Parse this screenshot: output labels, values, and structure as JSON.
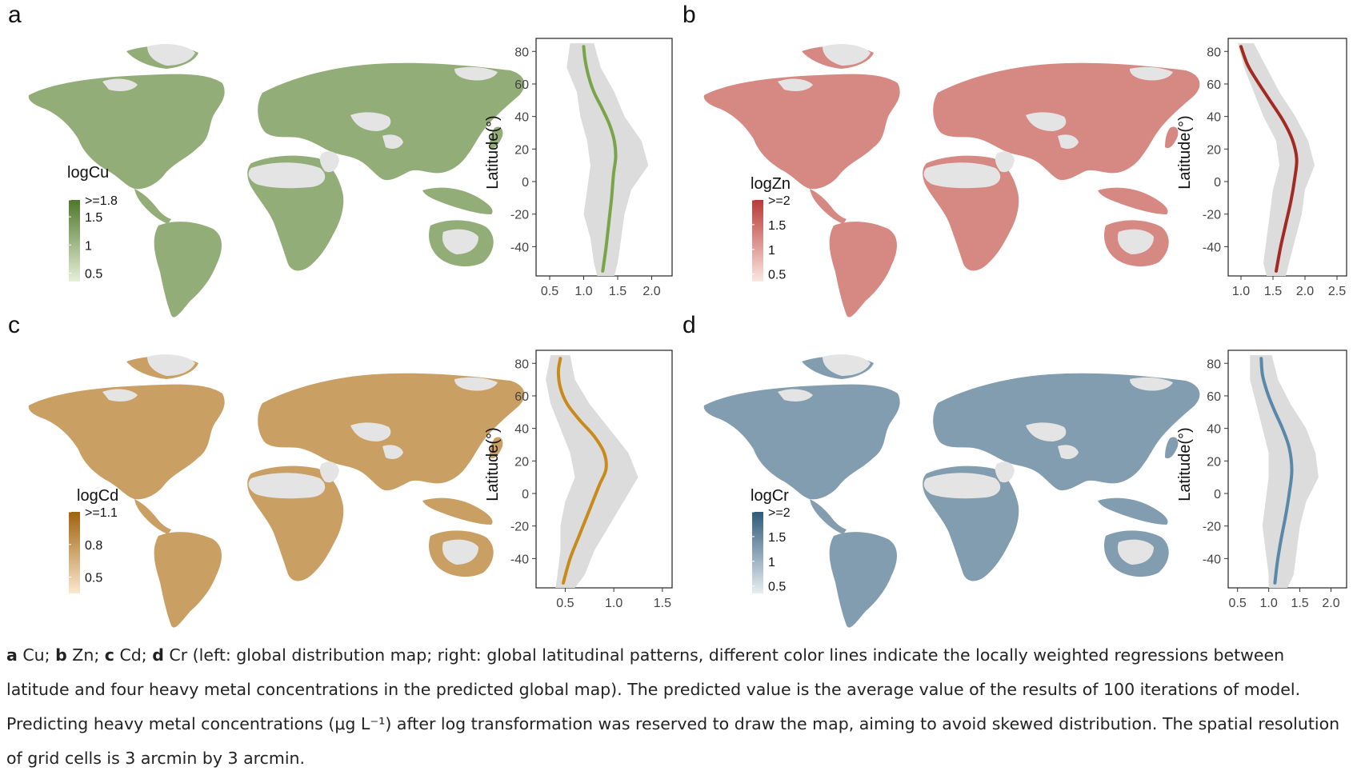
{
  "caption": {
    "a": "a",
    "a_text": " Cu; ",
    "b": "b",
    "b_text": " Zn; ",
    "c": "c",
    "c_text": " Cd; ",
    "d": "d",
    "rest": " Cr (left: global distribution map; right: global latitudinal patterns, different color lines indicate the locally weighted regressions between latitude and four heavy metal concentrations in the predicted global map). The predicted value is the average value of the results of 100 iterations of model. Predicting heavy metal concentrations (μg L⁻¹) after log transformation was reserved to draw the map, aiming to avoid skewed distribution. The spatial resolution of grid cells is 3 arcmin by 3 arcmin."
  },
  "chart_data": [
    {
      "type": "line",
      "panel": "a",
      "metal": "Cu",
      "legend_title": "logCu",
      "legend_ticks": [
        ">=1.8",
        "1.5",
        "1",
        "0.5"
      ],
      "legend_values": [
        1.8,
        1.5,
        1.0,
        0.5
      ],
      "legend_range": [
        0.35,
        1.8
      ],
      "colors": {
        "low": "#e7efd8",
        "high": "#4f772b",
        "line": "#7aa449"
      },
      "ylabel": "Latitude(°)",
      "ylim": [
        -58,
        88
      ],
      "yticks": [
        80,
        60,
        40,
        20,
        0,
        -20,
        -40
      ],
      "xlim": [
        0.3,
        2.3
      ],
      "xticks": [
        0.5,
        1.0,
        1.5,
        2.0
      ],
      "xtick_labels": [
        "0.5",
        "1.0",
        "1.5",
        "2.0"
      ],
      "x": [
        1.0,
        1.02,
        1.07,
        1.15,
        1.27,
        1.38,
        1.45,
        1.47,
        1.44,
        1.41,
        1.37,
        1.33,
        1.28
      ],
      "y": [
        83,
        75,
        65,
        55,
        45,
        35,
        25,
        15,
        5,
        -10,
        -25,
        -40,
        -55
      ],
      "band": {
        "y": [
          85,
          70,
          55,
          40,
          25,
          10,
          -5,
          -20,
          -35,
          -50,
          -58
        ],
        "lo": [
          0.8,
          0.75,
          0.9,
          0.95,
          1.05,
          1.1,
          1.05,
          1.0,
          1.1,
          1.15,
          1.2
        ],
        "hi": [
          1.15,
          1.25,
          1.45,
          1.6,
          1.85,
          1.95,
          1.7,
          1.6,
          1.55,
          1.5,
          1.45
        ]
      }
    },
    {
      "type": "line",
      "panel": "b",
      "metal": "Zn",
      "legend_title": "logZn",
      "legend_ticks": [
        ">=2",
        "1.5",
        "1",
        "0.5"
      ],
      "legend_values": [
        2.0,
        1.5,
        1.0,
        0.5
      ],
      "legend_range": [
        0.35,
        2.0
      ],
      "colors": {
        "low": "#fbe7e2",
        "high": "#b83a36",
        "line": "#a32a22"
      },
      "ylabel": "Latitude(°)",
      "ylim": [
        -58,
        88
      ],
      "yticks": [
        80,
        60,
        40,
        20,
        0,
        -20,
        -40
      ],
      "xlim": [
        0.8,
        2.65
      ],
      "xticks": [
        1.0,
        1.5,
        2.0,
        2.5
      ],
      "xtick_labels": [
        "1.0",
        "1.5",
        "2.0",
        "2.5"
      ],
      "x": [
        1.0,
        1.1,
        1.25,
        1.45,
        1.65,
        1.8,
        1.87,
        1.84,
        1.78,
        1.7,
        1.62,
        1.55
      ],
      "y": [
        83,
        72,
        62,
        50,
        38,
        26,
        14,
        2,
        -12,
        -26,
        -40,
        -55
      ],
      "band": {
        "y": [
          85,
          70,
          55,
          40,
          25,
          10,
          -5,
          -20,
          -35,
          -50,
          -58
        ],
        "lo": [
          0.95,
          1.05,
          1.2,
          1.35,
          1.55,
          1.6,
          1.5,
          1.45,
          1.4,
          1.35,
          1.4
        ],
        "hi": [
          1.2,
          1.4,
          1.6,
          1.85,
          2.05,
          2.15,
          2.0,
          1.95,
          1.85,
          1.75,
          1.7
        ]
      }
    },
    {
      "type": "line",
      "panel": "c",
      "metal": "Cd",
      "legend_title": "logCd",
      "legend_ticks": [
        ">=1.1",
        "0.8",
        "0.5"
      ],
      "legend_values": [
        1.1,
        0.8,
        0.5
      ],
      "legend_range": [
        0.35,
        1.1
      ],
      "colors": {
        "low": "#fbe9cf",
        "high": "#a0620c",
        "line": "#c98a1c"
      },
      "ylabel": "Latitude(°)",
      "ylim": [
        -58,
        88
      ],
      "yticks": [
        80,
        60,
        40,
        20,
        0,
        -20,
        -40
      ],
      "xlim": [
        0.2,
        1.6
      ],
      "xticks": [
        0.5,
        1.0,
        1.5
      ],
      "xtick_labels": [
        "0.5",
        "1.0",
        "1.5"
      ],
      "x": [
        0.45,
        0.43,
        0.45,
        0.52,
        0.65,
        0.8,
        0.9,
        0.92,
        0.85,
        0.75,
        0.65,
        0.55,
        0.48
      ],
      "y": [
        83,
        75,
        65,
        55,
        45,
        35,
        25,
        15,
        5,
        -10,
        -25,
        -40,
        -55
      ],
      "band": {
        "y": [
          85,
          70,
          55,
          40,
          25,
          10,
          -5,
          -20,
          -35,
          -50,
          -58
        ],
        "lo": [
          0.35,
          0.3,
          0.35,
          0.45,
          0.55,
          0.6,
          0.5,
          0.45,
          0.45,
          0.42,
          0.4
        ],
        "hi": [
          0.55,
          0.6,
          0.75,
          0.95,
          1.15,
          1.25,
          1.1,
          0.95,
          0.8,
          0.7,
          0.6
        ]
      }
    },
    {
      "type": "line",
      "panel": "d",
      "metal": "Cr",
      "legend_title": "logCr",
      "legend_ticks": [
        ">=2",
        "1.5",
        "1",
        "0.5"
      ],
      "legend_values": [
        2.0,
        1.5,
        1.0,
        0.5
      ],
      "legend_range": [
        0.35,
        2.0
      ],
      "colors": {
        "low": "#e8eef2",
        "high": "#2f5a78",
        "line": "#5a88a8"
      },
      "ylabel": "Latitude(°)",
      "ylim": [
        -58,
        88
      ],
      "yticks": [
        80,
        60,
        40,
        20,
        0,
        -20,
        -40
      ],
      "xlim": [
        0.35,
        2.25
      ],
      "xticks": [
        0.5,
        1.0,
        1.5,
        2.0
      ],
      "xtick_labels": [
        "0.5",
        "1.0",
        "1.5",
        "2.0"
      ],
      "x": [
        0.88,
        0.9,
        0.97,
        1.08,
        1.22,
        1.33,
        1.37,
        1.33,
        1.27,
        1.2,
        1.14,
        1.1
      ],
      "y": [
        83,
        73,
        63,
        52,
        40,
        28,
        14,
        0,
        -14,
        -28,
        -42,
        -55
      ],
      "band": {
        "y": [
          85,
          70,
          55,
          40,
          25,
          10,
          -5,
          -20,
          -35,
          -50,
          -58
        ],
        "lo": [
          0.7,
          0.7,
          0.8,
          0.9,
          1.0,
          1.0,
          0.95,
          0.9,
          0.95,
          1.0,
          1.0
        ],
        "hi": [
          1.05,
          1.15,
          1.35,
          1.6,
          1.75,
          1.8,
          1.6,
          1.5,
          1.45,
          1.4,
          1.3
        ]
      }
    }
  ]
}
